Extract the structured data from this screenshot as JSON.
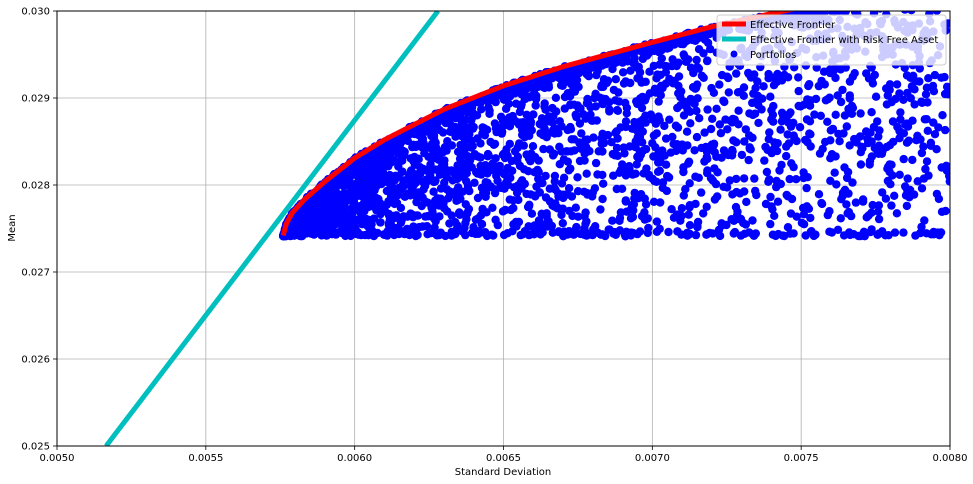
{
  "chart_data": {
    "type": "scatter",
    "xlabel": "Standard Deviation",
    "ylabel": "Mean",
    "xlim": [
      0.005,
      0.008
    ],
    "ylim": [
      0.025,
      0.03
    ],
    "xticks": [
      "0.0050",
      "0.0055",
      "0.0060",
      "0.0065",
      "0.0070",
      "0.0075",
      "0.0080"
    ],
    "yticks": [
      "0.025",
      "0.026",
      "0.027",
      "0.028",
      "0.029",
      "0.030"
    ],
    "grid": true,
    "legend_position": "top-right",
    "series": [
      {
        "name": "Effective Frontier",
        "kind": "line",
        "color": "#ff0000",
        "x": [
          0.00576,
          0.00577,
          0.00579,
          0.00583,
          0.0059,
          0.006,
          0.0061,
          0.0063,
          0.0065,
          0.0067,
          0.007,
          0.0072,
          0.0074,
          0.0075
        ],
        "y": [
          0.02742,
          0.02755,
          0.02768,
          0.02783,
          0.02804,
          0.02831,
          0.02852,
          0.02887,
          0.02914,
          0.02936,
          0.02964,
          0.02982,
          0.02997,
          0.03004
        ]
      },
      {
        "name": "Effective Frontier with Risk Free Asset",
        "kind": "line",
        "color": "#00bfbf",
        "x": [
          0.005165,
          0.00628
        ],
        "y": [
          0.025,
          0.03
        ]
      },
      {
        "name": "Portfolios",
        "kind": "scatter",
        "color": "#0000ff",
        "boundary_x": [
          0.00576,
          0.00577,
          0.00579,
          0.00583,
          0.0059,
          0.006,
          0.0061,
          0.0063,
          0.0065,
          0.0067,
          0.007,
          0.0072,
          0.0074,
          0.0076,
          0.0078,
          0.008
        ],
        "boundary_y": [
          0.02742,
          0.02755,
          0.02768,
          0.02783,
          0.02804,
          0.02831,
          0.02852,
          0.02887,
          0.02914,
          0.02936,
          0.02964,
          0.02982,
          0.02997,
          0.0301,
          0.0302,
          0.0303
        ],
        "y_min": 0.02741
      }
    ],
    "legend": [
      {
        "label": "Effective Frontier",
        "marker": "line",
        "color": "#ff0000"
      },
      {
        "label": "Effective Frontier with Risk Free Asset",
        "marker": "line",
        "color": "#00bfbf"
      },
      {
        "label": "Portfolios",
        "marker": "dot",
        "color": "#0000ff"
      }
    ]
  }
}
